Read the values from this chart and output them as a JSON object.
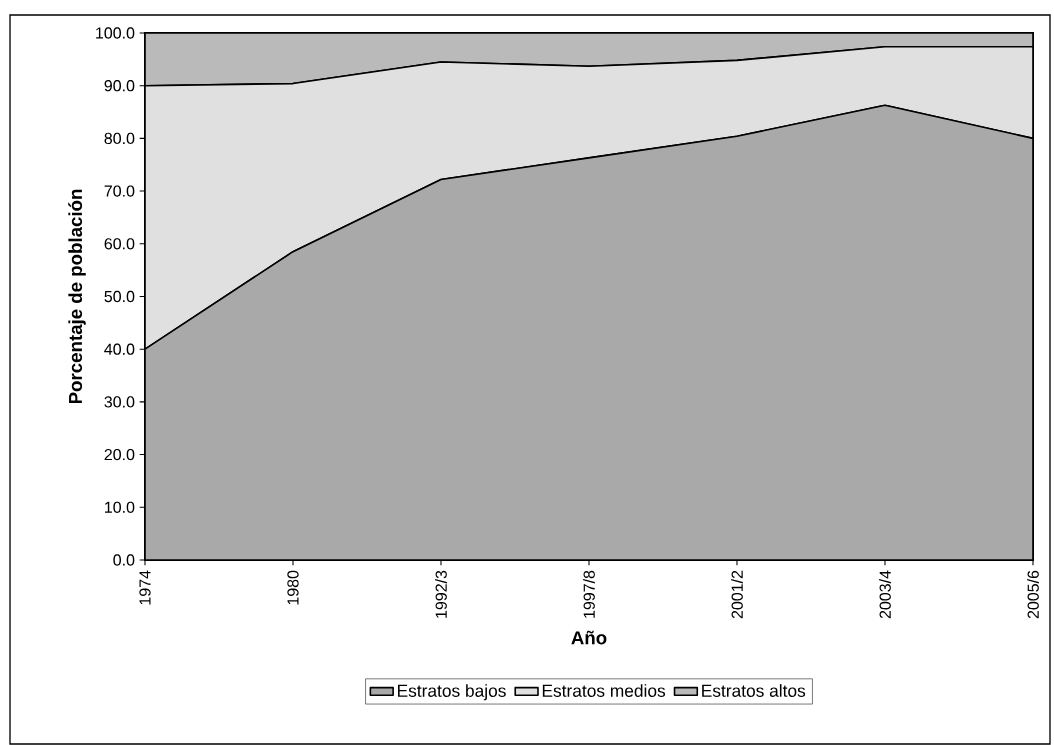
{
  "chart_data": {
    "type": "area",
    "stacked": true,
    "xlabel": "Año",
    "ylabel": "Porcentaje de población",
    "categories": [
      "1974",
      "1980",
      "1992/3",
      "1997/8",
      "2001/2",
      "2003/4",
      "2005/6"
    ],
    "series": [
      {
        "name": "Estratos bajos",
        "color": "#a9a9a9",
        "values": [
          40.0,
          58.5,
          72.2,
          76.3,
          80.4,
          86.3,
          80.0
        ]
      },
      {
        "name": "Estratos medios",
        "color": "#e0e0e0",
        "values": [
          50.0,
          31.9,
          22.3,
          17.4,
          14.4,
          11.1,
          17.4
        ]
      },
      {
        "name": "Estratos altos",
        "color": "#bababa",
        "values": [
          10.0,
          9.6,
          5.5,
          6.3,
          5.2,
          2.6,
          2.6
        ]
      }
    ],
    "ylim": [
      0,
      100
    ],
    "yticks": [
      {
        "value": 0,
        "label": "0.0"
      },
      {
        "value": 10,
        "label": "10.0"
      },
      {
        "value": 20,
        "label": "20.0"
      },
      {
        "value": 30,
        "label": "30.0"
      },
      {
        "value": 40,
        "label": "40.0"
      },
      {
        "value": 50,
        "label": "50.0"
      },
      {
        "value": 60,
        "label": "60.0"
      },
      {
        "value": 70,
        "label": "70.0"
      },
      {
        "value": 80,
        "label": "80.0"
      },
      {
        "value": 90,
        "label": "90.0"
      },
      {
        "value": 100,
        "label": "100.0"
      }
    ],
    "legend": "bottom"
  }
}
